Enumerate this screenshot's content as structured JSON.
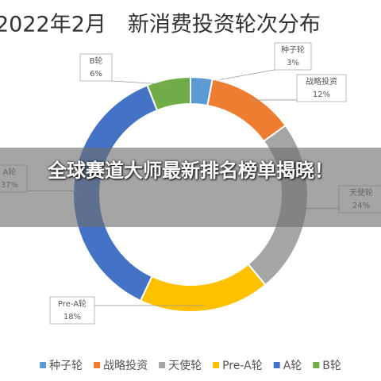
{
  "chart_data": {
    "type": "donut",
    "title": "2022年2月　新消费投资轮次分布",
    "categories": [
      "种子轮",
      "战略投资",
      "天使轮",
      "Pre-A轮",
      "A轮",
      "B轮"
    ],
    "values": [
      3,
      12,
      24,
      18,
      37,
      6
    ],
    "value_labels": [
      "3%",
      "12%",
      "24%",
      "18%",
      "37%",
      "6%"
    ],
    "colors": [
      "#5b9bd5",
      "#ed7d31",
      "#a5a5a5",
      "#ffc000",
      "#4472c4",
      "#70ad47"
    ],
    "legend": "bottom"
  },
  "overlay": {
    "headline": "全球赛道大师最新排名榜单揭晓！"
  }
}
